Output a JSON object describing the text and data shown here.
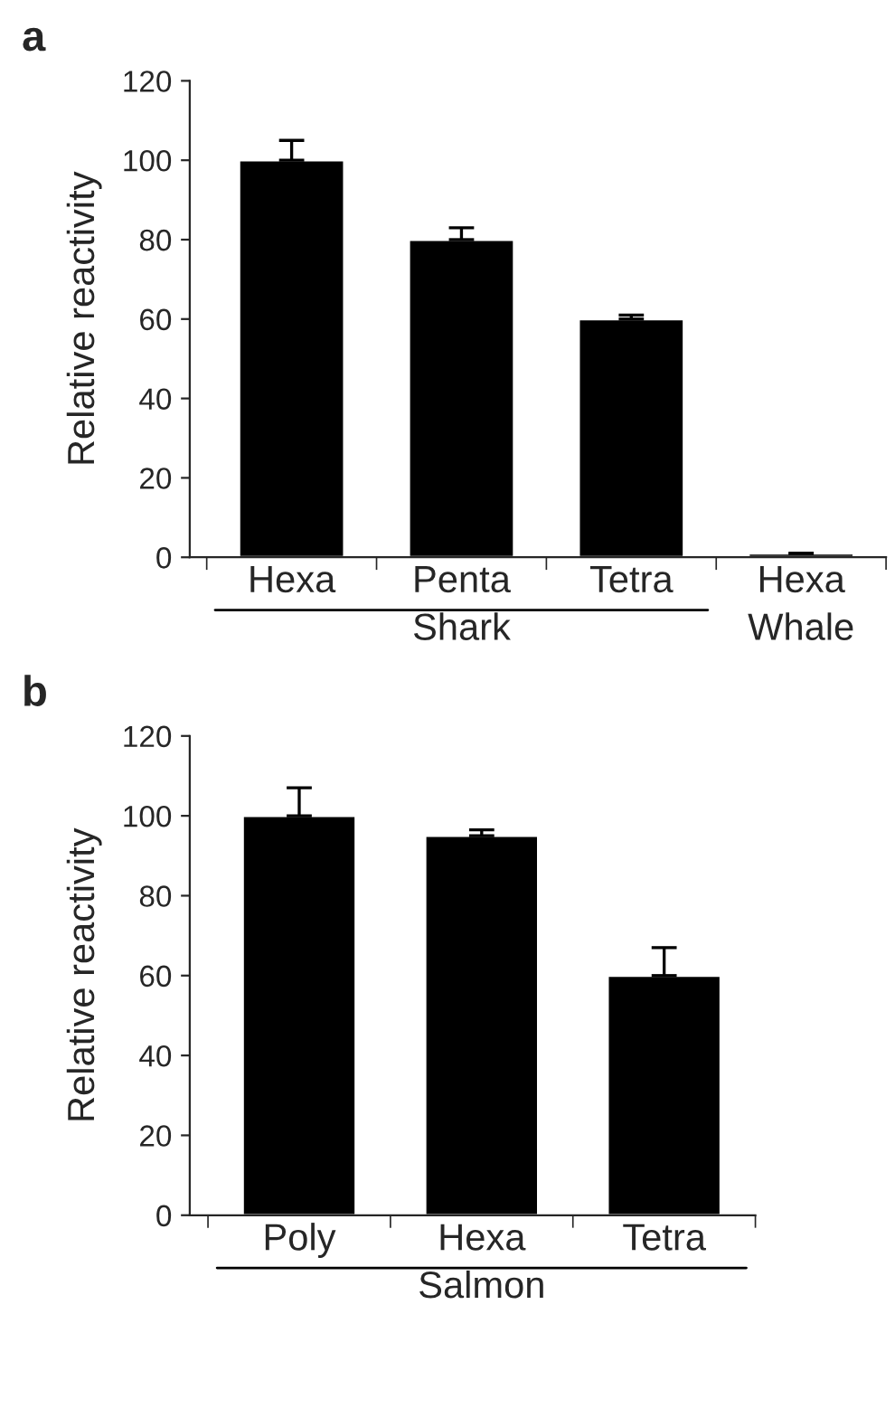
{
  "chart_data": [
    {
      "type": "bar",
      "title": "a",
      "ylabel": "Relative reactivity",
      "categories": [
        "Hexa",
        "Penta",
        "Tetra",
        "Hexa"
      ],
      "values": [
        100,
        80,
        60,
        1
      ],
      "errors": [
        5,
        3,
        1,
        null
      ],
      "color": "#000000",
      "ylim": [
        0,
        120
      ],
      "yticks": [
        0,
        20,
        40,
        60,
        80,
        100,
        120
      ],
      "grid": false,
      "legend": false,
      "annotations": [
        "Shark",
        "Whale"
      ]
    },
    {
      "type": "bar",
      "title": "b",
      "ylabel": "Relative reactivity",
      "categories": [
        "Poly",
        "Hexa",
        "Tetra"
      ],
      "values": [
        100,
        95,
        60
      ],
      "errors": [
        7,
        1.5,
        7
      ],
      "color": "#000000",
      "ylim": [
        0,
        120
      ],
      "yticks": [
        0,
        20,
        40,
        60,
        80,
        100,
        120
      ],
      "grid": false,
      "legend": false,
      "annotations": [
        "Salmon"
      ]
    }
  ]
}
